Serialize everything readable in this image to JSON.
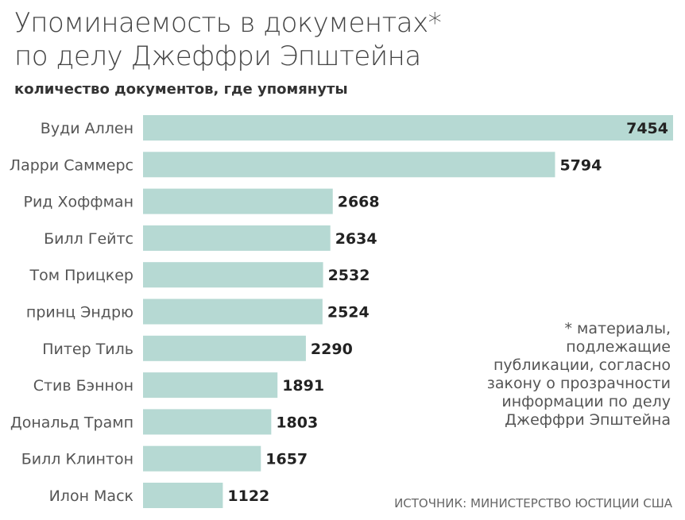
{
  "chart_data": {
    "type": "bar",
    "orientation": "horizontal",
    "title": "Упоминаемость в документах*\nпо делу Джеффри Эпштейна",
    "subtitle": "количество документов, где упомянуты",
    "categories": [
      "Вуди Аллен",
      "Ларри Саммерс",
      "Рид Хоффман",
      "Билл Гейтс",
      "Том Прицкер",
      "принц Эндрю",
      "Питер Тиль",
      "Стив Бэннон",
      "Дональд Трамп",
      "Билл Клинтон",
      "Илон Маск"
    ],
    "values": [
      7454,
      5794,
      2668,
      2634,
      2532,
      2524,
      2290,
      1891,
      1803,
      1657,
      1122
    ],
    "xlim": [
      0,
      7454
    ],
    "grid": false,
    "bar_color": "#b6d9d3",
    "note": "* материалы, подлежащие публикации, согласно закону о прозрачности информации по делу Джеффри Эпштейна",
    "source": "ИСТОЧНИК: МИНИСТЕРСТВО ЮСТИЦИИ США"
  }
}
